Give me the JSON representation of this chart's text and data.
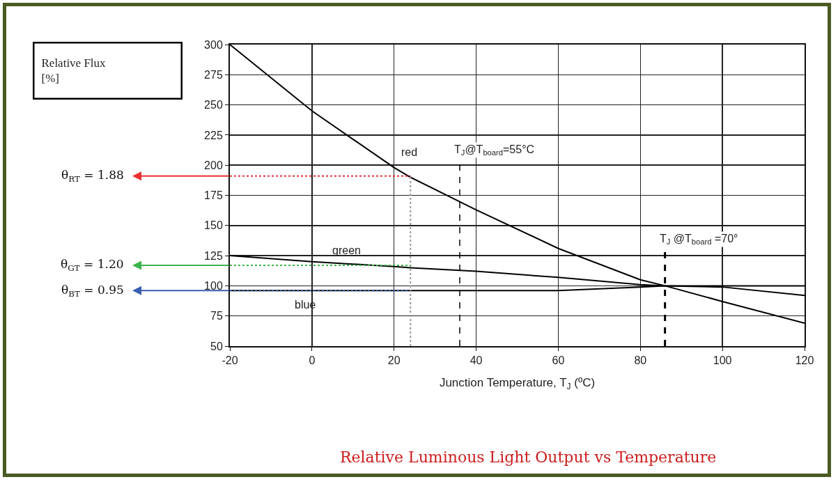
{
  "chart_data": {
    "type": "line",
    "title": "Relative Luminous Light Output vs Temperature",
    "xlabel": "Junction Temperature, T$_{J}$ (ºC)",
    "xlim": [
      -20,
      120
    ],
    "xticks": [
      -20,
      0,
      20,
      40,
      60,
      80,
      100,
      120
    ],
    "ylim": [
      50,
      300
    ],
    "yticks": [
      50,
      75,
      100,
      125,
      150,
      175,
      200,
      225,
      250,
      275,
      300
    ],
    "grid": true,
    "legend": false,
    "marker": "none",
    "line_style": "solid",
    "series": [
      {
        "name": "red",
        "color": "#000000",
        "x": [
          -20,
          0,
          20,
          24,
          40,
          60,
          80,
          86,
          100,
          120
        ],
        "values": [
          300,
          245,
          198,
          190,
          163,
          131,
          105,
          100,
          87,
          69
        ]
      },
      {
        "name": "green",
        "color": "#000000",
        "x": [
          -20,
          0,
          20,
          24,
          40,
          60,
          80,
          86,
          100,
          120
        ],
        "values": [
          125,
          120,
          116,
          115,
          112,
          107,
          101,
          100,
          99,
          92
        ]
      },
      {
        "name": "blue",
        "color": "#000000",
        "x": [
          -20,
          0,
          20,
          24,
          40,
          60,
          80,
          86,
          100,
          120
        ],
        "values": [
          96,
          96,
          96,
          96,
          96,
          96,
          99,
          100,
          100,
          100
        ]
      }
    ],
    "ref_lines": [
      {
        "axis": "x",
        "value": 24,
        "label": null,
        "color": "#999999",
        "line_style": "dotted"
      },
      {
        "axis": "x",
        "value": 36,
        "label": null,
        "color": "#000000",
        "line_style": "dashed"
      },
      {
        "axis": "x",
        "value": 86,
        "label": null,
        "color": "#000000",
        "line_style": "dashed"
      },
      {
        "axis": "y",
        "value": 191,
        "label": null,
        "color": "#e8302f",
        "line_style": "dotted"
      },
      {
        "axis": "y",
        "value": 117,
        "label": null,
        "color": "#3cb44b",
        "line_style": "dotted"
      },
      {
        "axis": "y",
        "value": 96,
        "label": null,
        "color": "#3a5fb0",
        "line_style": "dotted"
      }
    ],
    "annotations": [
      "Relative Flux [%]",
      "θ$_{RT}$ = 1.88",
      "θ$_{GT}$ = 1.20",
      "θ$_{BT}$ = 0.95",
      {
        "text": "T$_{J}$@T$_{board}$=55°C",
        "x": 36,
        "y": 205
      },
      {
        "text": "T$_{J}$ @T$_{board}$ =70°",
        "x": 86,
        "y": 131
      }
    ]
  }
}
